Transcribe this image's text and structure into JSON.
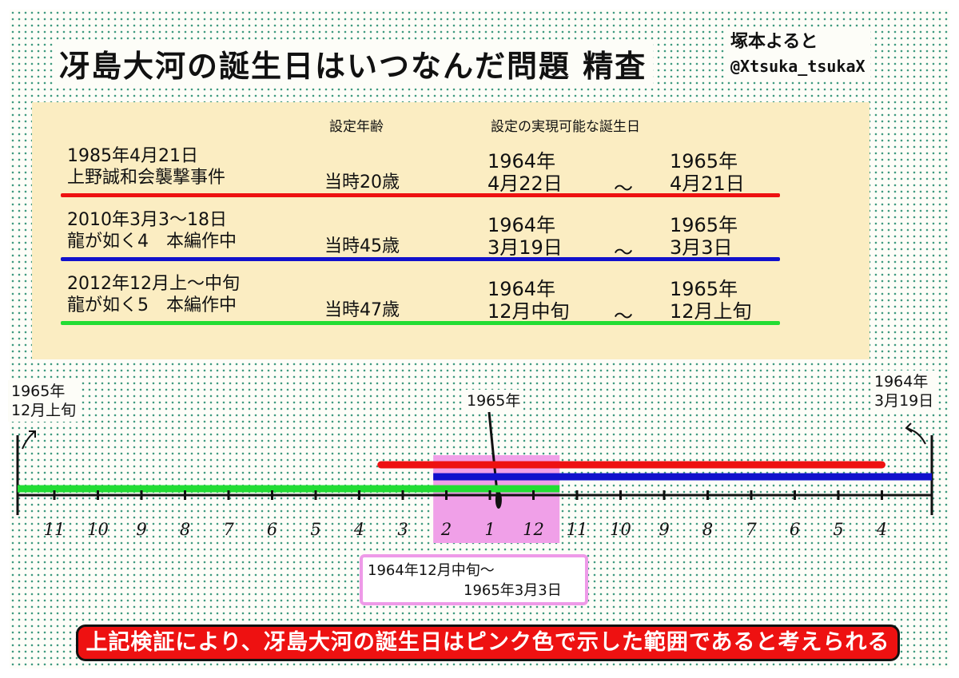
{
  "title": "冴島大河の誕生日はいつなんだ問題 精査",
  "author": {
    "name": "塚本よると",
    "handle": "@Xtsuka_tsukaX"
  },
  "table": {
    "header_age": "設定年齢",
    "header_birthday": "設定の実現可能な誕生日",
    "rows": [
      {
        "line1": "1985年4月21日",
        "line2": "上野誠和会襲撃事件",
        "age": "当時20歳",
        "from_year": "1964年",
        "from_day": "4月22日",
        "tilde": "～",
        "to_year": "1965年",
        "to_day": "4月21日",
        "color": "#ee1111"
      },
      {
        "line1": "2010年3月3～18日",
        "line2": "龍が如く4　本編作中",
        "age": "当時45歳",
        "from_year": "1964年",
        "from_day": "3月19日",
        "tilde": "～",
        "to_year": "1965年",
        "to_day": "3月3日",
        "color": "#1111cc"
      },
      {
        "line1": "2012年12月上～中旬",
        "line2": "龍が如く5　本編作中",
        "age": "当時47歳",
        "from_year": "1964年",
        "from_day": "12月中旬",
        "tilde": "～",
        "to_year": "1965年",
        "to_day": "12月上旬",
        "color": "#22dd33"
      }
    ]
  },
  "timeline": {
    "left_end": {
      "year": "1965年",
      "month": "12月上旬"
    },
    "center_label": "1965年",
    "right_end": {
      "year": "1964年",
      "month": "3月19日"
    },
    "months": [
      "11",
      "10",
      "9",
      "8",
      "7",
      "6",
      "5",
      "4",
      "3",
      "2",
      "1",
      "12",
      "11",
      "10",
      "9",
      "8",
      "7",
      "6",
      "5",
      "4"
    ],
    "bars": [
      {
        "name": "red",
        "color": "#ee1111",
        "from_month_index": 7.5,
        "to_month_index": 19.0
      },
      {
        "name": "blue",
        "color": "#1111cc",
        "from_month_index": 8.7,
        "to_month_index": 21.0
      },
      {
        "name": "green",
        "color": "#22dd33",
        "from_month_index": -1.0,
        "to_month_index": 11.6
      }
    ],
    "pink_range": {
      "color": "#f0a0e8",
      "from_month_index": 8.7,
      "to_month_index": 11.6
    }
  },
  "callout": {
    "line1": "1964年12月中旬～",
    "line2": "1965年3月3日"
  },
  "conclusion": "上記検証により、冴島大河の誕生日はピンク色で示した範囲であると考えられる"
}
